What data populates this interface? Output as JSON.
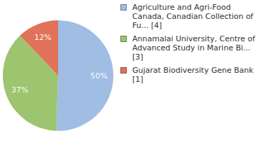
{
  "chart_data": {
    "type": "pie",
    "categories": [
      "Agriculture and Agri-Food Canada, Canadian Collection of Fu... [4]",
      "Annamalai University, Centre of Advanced Study in Marine Bi... [3]",
      "Gujarat Biodiversity Gene Bank [1]"
    ],
    "values": [
      50,
      37,
      12
    ],
    "value_labels": [
      "50%",
      "37%",
      "12%"
    ],
    "colors": [
      "#a0bde3",
      "#9dc46f",
      "#e0735a"
    ],
    "data_labels": true,
    "legend": "top-right"
  }
}
